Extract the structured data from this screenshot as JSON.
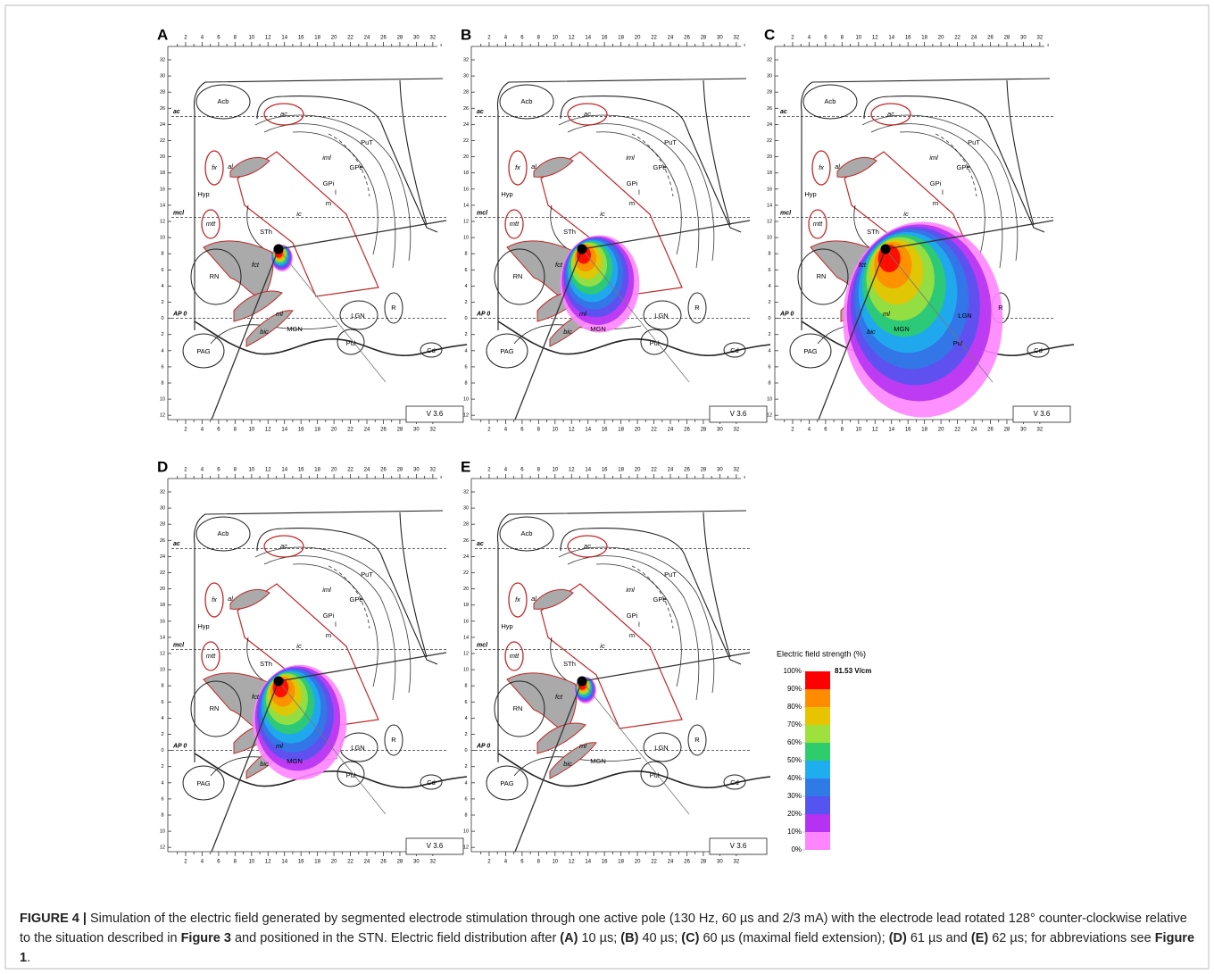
{
  "panels": [
    {
      "label": "A"
    },
    {
      "label": "B"
    },
    {
      "label": "C"
    },
    {
      "label": "D"
    },
    {
      "label": "E"
    }
  ],
  "atlas": {
    "labels": [
      "Acb",
      "ac",
      "PuT",
      "iml",
      "GPe",
      "GPi",
      "l",
      "m",
      "fx",
      "al",
      "Hyp",
      "ic",
      "mtt",
      "STh",
      "RN",
      "fct",
      "ml",
      "LGN",
      "R",
      "bic",
      "MGN",
      "PAG",
      "Pul",
      "Cd"
    ],
    "lines": [
      "ac",
      "mcl",
      "AP 0"
    ],
    "version": "V 3.6",
    "xticks": [
      2,
      4,
      6,
      8,
      10,
      12,
      14,
      16,
      18,
      20,
      22,
      24,
      26,
      28,
      30,
      32
    ],
    "yticks": [
      32,
      30,
      28,
      26,
      24,
      22,
      20,
      18,
      16,
      14,
      12,
      10,
      8,
      6,
      4,
      2,
      0,
      {
        "value": -2,
        "label": "2"
      },
      {
        "value": -4,
        "label": "4"
      },
      {
        "value": -6,
        "label": "6"
      },
      {
        "value": -8,
        "label": "8"
      },
      {
        "value": -10,
        "label": "10"
      },
      {
        "value": -12,
        "label": "12"
      }
    ]
  },
  "legend": {
    "title": "Electric field strength (%)",
    "max_label": "81.53 V/cm",
    "ticks": [
      {
        "value": 100,
        "label": "100%"
      },
      {
        "value": 90,
        "label": "90%"
      },
      {
        "value": 80,
        "label": "80%"
      },
      {
        "value": 70,
        "label": "70%"
      },
      {
        "value": 60,
        "label": "60%"
      },
      {
        "value": 50,
        "label": "50%"
      },
      {
        "value": 40,
        "label": "40%"
      },
      {
        "value": 30,
        "label": "30%"
      },
      {
        "value": 20,
        "label": "20%"
      },
      {
        "value": 10,
        "label": "10%"
      },
      {
        "value": 0,
        "label": "0%"
      }
    ],
    "colors": [
      "#ff0000",
      "#ff8c00",
      "#e8c400",
      "#9ee03c",
      "#2ecc6a",
      "#1eaef0",
      "#2f7ae6",
      "#5454f0",
      "#b632f2",
      "#ff84ff"
    ]
  },
  "caption": {
    "parts": [
      {
        "text": "FIGURE 4 |",
        "bold": true
      },
      {
        "text": " Simulation of the electric field generated by segmented electrode stimulation through one active pole (130 Hz, 60 µs and 2/3 mA) with the electrode lead rotated 128° counter-clockwise relative to the situation described in ",
        "bold": false
      },
      {
        "text": "Figure 3",
        "bold": true
      },
      {
        "text": " and positioned in the STN. Electric field distribution after ",
        "bold": false
      },
      {
        "text": "(A)",
        "bold": true
      },
      {
        "text": " 10 µs; ",
        "bold": false
      },
      {
        "text": "(B)",
        "bold": true
      },
      {
        "text": " 40 µs; ",
        "bold": false
      },
      {
        "text": "(C)",
        "bold": true
      },
      {
        "text": " 60 µs (maximal field extension); ",
        "bold": false
      },
      {
        "text": "(D)",
        "bold": true
      },
      {
        "text": " 61 µs and ",
        "bold": false
      },
      {
        "text": "(E)",
        "bold": true
      },
      {
        "text": " 62 µs; for abbreviations see ",
        "bold": false
      },
      {
        "text": "Figure 1",
        "bold": true
      },
      {
        "text": ".",
        "bold": false
      }
    ]
  }
}
